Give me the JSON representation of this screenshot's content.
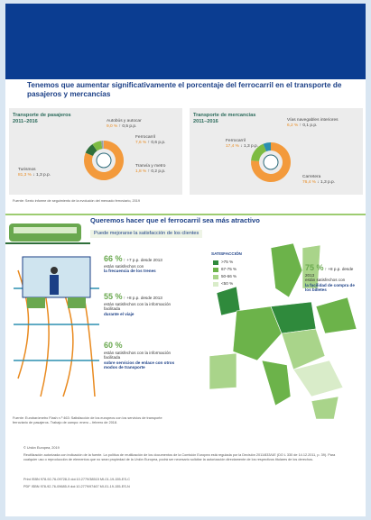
{
  "section1": {
    "title": "Tenemos que aumentar significativamente el porcentaje del ferrocarril en el transporte de pasajeros y mercancías",
    "panels": [
      {
        "title": "Transporte de pasajeros 2011–2016",
        "segments": [
          {
            "name": "Turismos",
            "value": 81.3,
            "value_label": "81,3 %",
            "change": "↓ 1,3 p.p.",
            "color": "#f39a3c"
          },
          {
            "name": "Autobús y autocar",
            "value": 9.0,
            "value_label": "9,0 %",
            "change": "↑ 0,5 p.p.",
            "color": "#2f6f3a"
          },
          {
            "name": "Ferrocarril",
            "value": 7.6,
            "value_label": "7,6 %",
            "change": "↑ 0,6 p.p.",
            "color": "#7dbb42"
          },
          {
            "name": "Tranvía y metro",
            "value": 1.8,
            "value_label": "1,8 %",
            "change": "↑ 0,2 p.p.",
            "color": "#9aa0a6"
          }
        ]
      },
      {
        "title": "Transporte de mercancías 2011–2016",
        "segments": [
          {
            "name": "Carretera",
            "value": 76.4,
            "value_label": "76,4 %",
            "change": "↓ 1,3 p.p.",
            "color": "#f39a3c"
          },
          {
            "name": "Ferrocarril",
            "value": 17.4,
            "value_label": "17,4 %",
            "change": "↓ 1,3 p.p.",
            "color": "#7dbb42"
          },
          {
            "name": "Vías navegables interiores",
            "value": 6.2,
            "value_label": "6,2 %",
            "change": "↑ 0,1 p.p.",
            "color": "#2b8fb0"
          }
        ]
      }
    ],
    "source": "Fuente: Sexto informe de seguimiento de la evolución del mercado ferroviario, 2019"
  },
  "section2": {
    "title": "Queremos hacer que el ferrocarril sea más atractivo",
    "subtitle": "Puede mejorarse la satisfacción de los clientes",
    "stats": [
      {
        "pct": "66 %",
        "change": "↑ +7 p.p. desde 2013",
        "text": "están satisfechos con",
        "highlight": "la frecuencia de los trenes"
      },
      {
        "pct": "55 %",
        "change": "↑ +8 p.p. desde 2013",
        "text": "están satisfechos con la información facilitada",
        "highlight": "durante el viaje"
      },
      {
        "pct": "60 %",
        "change": "",
        "text": "están satisfechos con la información facilitada",
        "highlight": "sobre servicios de enlace con otros modos de transporte"
      }
    ],
    "legend": {
      "title": "SATISFACCIÓN",
      "items": [
        {
          "label": ">75 %",
          "color": "#2f8a3c"
        },
        {
          "label": "67-75 %",
          "color": "#6cb34a"
        },
        {
          "label": "50-66 %",
          "color": "#a9d48a"
        },
        {
          "label": "<50 %",
          "color": "#d9ecc9"
        }
      ]
    },
    "map_stat": {
      "pct": "75 %",
      "change": "↑ +8 p.p. desde 2013",
      "text": "están satisfechos con",
      "highlight": "la facilidad de compra de los billetes"
    },
    "source": "Fuente: Eurobarómetro Flash n.º 463: Satisfacción de los europeos con los servicios de transporte ferroviario de pasajeros. Trabajo de campo: enero – febrero de 2018."
  },
  "footer": {
    "lines": [
      "© Unión Europea, 2019",
      "Reutilización autorizada con indicación de la fuente. La política de reutilización de los documentos de la Comisión Europea está regulada por la Decisión 2011/833/UE (DO L 330 de 14.12.2011, p. 39). Para cualquier uso o reproducción de elementos que no sean propiedad de la Unión Europea, podrá ser necesario solicitar la autorización directamente de los respectivos titulares de los derechos.",
      "Print   ISBN 978-92-76-09728-3   doi:10.2779/38515   MI-01-19-155-ES-C",
      "PDF   ISBN 978-92-76-09685-9   doi:10.2779/97467   MI-01-19-155-ES-N"
    ]
  }
}
